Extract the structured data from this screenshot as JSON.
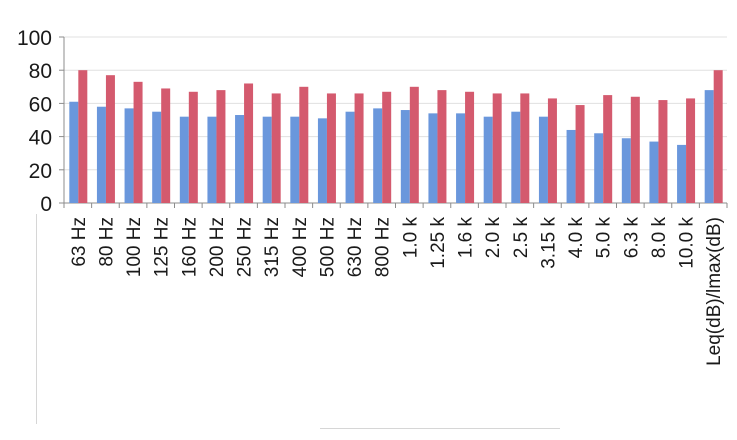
{
  "chart_data": {
    "type": "bar",
    "categories": [
      "63 Hz",
      "80 Hz",
      "100 Hz",
      "125 Hz",
      "160 Hz",
      "200 Hz",
      "250 Hz",
      "315 Hz",
      "400 Hz",
      "500 Hz",
      "630 Hz",
      "800 Hz",
      "1.0 k",
      "1.25 k",
      "1.6 k",
      "2.0 k",
      "2.5 k",
      "3.15 k",
      "4.0 k",
      "5.0 k",
      "6.3 k",
      "8.0 k",
      "10.0 k",
      "Leq(dB)/lmax(dB)"
    ],
    "series": [
      {
        "color": "#6a97dc",
        "values": [
          61,
          58,
          57,
          55,
          52,
          52,
          53,
          52,
          52,
          51,
          55,
          57,
          56,
          54,
          54,
          52,
          55,
          52,
          44,
          42,
          39,
          37,
          35,
          68
        ]
      },
      {
        "color": "#d45a6e",
        "values": [
          80,
          77,
          73,
          69,
          67,
          68,
          72,
          66,
          70,
          66,
          66,
          67,
          70,
          68,
          67,
          66,
          66,
          63,
          59,
          65,
          64,
          62,
          63,
          80
        ]
      }
    ],
    "yticks": [
      0,
      20,
      40,
      60,
      80,
      100
    ],
    "ylim": [
      0,
      100
    ],
    "grid": true,
    "title": "",
    "xlabel": "",
    "ylabel": ""
  }
}
